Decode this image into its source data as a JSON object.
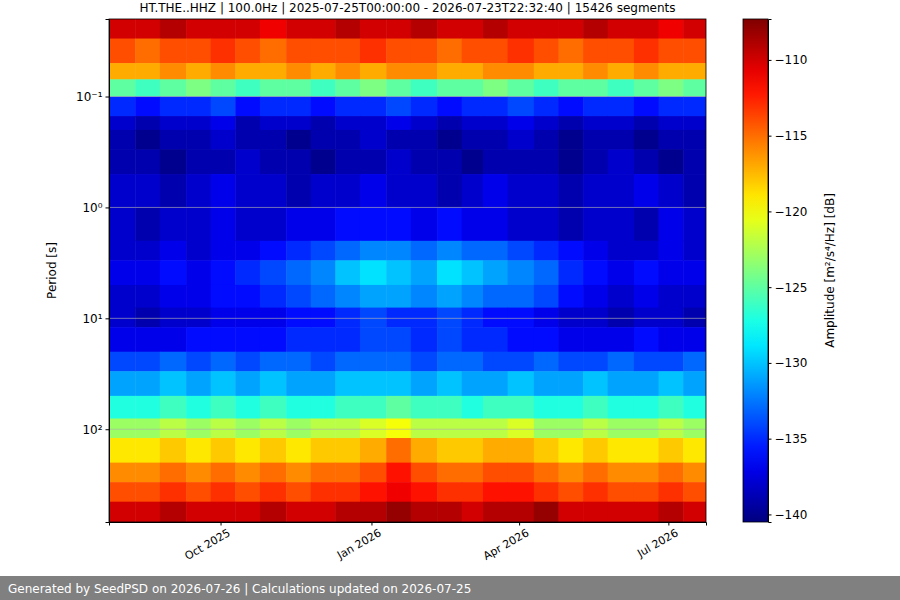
{
  "chart_data": {
    "type": "heatmap",
    "title": "HT.THE..HHZ | 100.0Hz | 2025-07-25T00:00:00 - 2026-07-23T22:32:40 | 15426 segments",
    "y_label": "Period [s]",
    "colorbar_label": "Amplitude [m²/s⁴/Hz] [dB]",
    "footer": "Generated by SeedPSD on 2026-07-26 | Calculations updated on 2026-07-25",
    "log": "y",
    "grid": true,
    "xlim": [
      "2025-07-25T00:00:00",
      "2026-07-23T22:32:40"
    ],
    "xticks": [
      {
        "value": "2025-10-01T00:00:00",
        "label": "Oct 2025"
      },
      {
        "value": "2026-01-01T00:00:00",
        "label": "Jan 2026"
      },
      {
        "value": "2026-04-01T00:00:00",
        "label": "Apr 2026"
      },
      {
        "value": "2026-07-01T00:00:00",
        "label": "Jul 2026"
      }
    ],
    "ylim": [
      0.02,
      686
    ],
    "yticks": [
      {
        "value": 0.1,
        "label": "10⁻¹"
      },
      {
        "value": 1,
        "label": "10⁰"
      },
      {
        "value": 10,
        "label": "10¹"
      },
      {
        "value": 100,
        "label": "10²"
      }
    ],
    "clim": [
      -140.5,
      -107.3
    ],
    "cticks": [
      {
        "value": -140,
        "label": "−140"
      },
      {
        "value": -135,
        "label": "−135"
      },
      {
        "value": -130,
        "label": "−130"
      },
      {
        "value": -125,
        "label": "−125"
      },
      {
        "value": -120,
        "label": "−120"
      },
      {
        "value": -115,
        "label": "−115"
      },
      {
        "value": -110,
        "label": "−110"
      }
    ],
    "x_edges": [
      "2025-07-25T00:00:00",
      "2025-08-10T00:00:00",
      "2025-08-25T00:00:00",
      "2025-09-10T00:00:00",
      "2025-09-25T00:00:00",
      "2025-10-10T00:00:00",
      "2025-10-25T00:00:00",
      "2025-11-10T00:00:00",
      "2025-11-25T00:00:00",
      "2025-12-10T00:00:00",
      "2025-12-25T00:00:00",
      "2026-01-10T00:00:00",
      "2026-01-25T00:00:00",
      "2026-02-10T00:00:00",
      "2026-02-25T00:00:00",
      "2026-03-10T00:00:00",
      "2026-03-25T00:00:00",
      "2026-04-10T00:00:00",
      "2026-04-25T00:00:00",
      "2026-05-10T00:00:00",
      "2026-05-25T00:00:00",
      "2026-06-10T00:00:00",
      "2026-06-25T00:00:00",
      "2026-07-10T00:00:00",
      "2026-07-23T22:32:40"
    ],
    "y_edges": [
      0.02,
      0.03,
      0.05,
      0.07,
      0.1,
      0.15,
      0.2,
      0.3,
      0.5,
      1,
      2,
      3,
      5,
      8,
      12,
      20,
      30,
      50,
      80,
      120,
      200,
      300,
      450,
      686
    ],
    "cells": [
      [
        -110,
        -110,
        -109,
        -110,
        -110,
        -110,
        -111,
        -110,
        -110,
        -109,
        -110,
        -110,
        -109,
        -110,
        -110,
        -109,
        -110,
        -110,
        -110,
        -109,
        -110,
        -110,
        -111,
        -110
      ],
      [
        -114,
        -115,
        -114,
        -114,
        -113,
        -114,
        -115,
        -114,
        -114,
        -114,
        -113,
        -114,
        -114,
        -115,
        -114,
        -114,
        -113,
        -114,
        -115,
        -114,
        -114,
        -113,
        -114,
        -114
      ],
      [
        -117,
        -117,
        -116,
        -117,
        -116,
        -117,
        -117,
        -116,
        -117,
        -116,
        -117,
        -116,
        -116,
        -117,
        -117,
        -116,
        -116,
        -117,
        -117,
        -116,
        -117,
        -116,
        -117,
        -117
      ],
      [
        -125,
        -126,
        -125,
        -124,
        -125,
        -126,
        -125,
        -125,
        -126,
        -125,
        -124,
        -125,
        -126,
        -125,
        -125,
        -124,
        -125,
        -126,
        -125,
        -125,
        -126,
        -125,
        -124,
        -125
      ],
      [
        -135,
        -136,
        -135,
        -135,
        -134,
        -136,
        -135,
        -135,
        -136,
        -135,
        -135,
        -134,
        -135,
        -136,
        -135,
        -135,
        -134,
        -135,
        -136,
        -135,
        -135,
        -136,
        -135,
        -135
      ],
      [
        -138,
        -139,
        -138,
        -138,
        -137,
        -139,
        -138,
        -138,
        -139,
        -138,
        -138,
        -137,
        -138,
        -139,
        -138,
        -138,
        -137,
        -138,
        -139,
        -138,
        -138,
        -139,
        -138,
        -138
      ],
      [
        -139,
        -140,
        -139,
        -139,
        -138,
        -139,
        -139,
        -140,
        -139,
        -139,
        -138,
        -139,
        -139,
        -140,
        -139,
        -139,
        -138,
        -139,
        -140,
        -139,
        -139,
        -140,
        -139,
        -139
      ],
      [
        -139,
        -139,
        -140,
        -139,
        -139,
        -138,
        -139,
        -139,
        -140,
        -139,
        -139,
        -138,
        -139,
        -139,
        -140,
        -139,
        -139,
        -139,
        -140,
        -139,
        -138,
        -139,
        -140,
        -139
      ],
      [
        -138,
        -138,
        -139,
        -138,
        -137,
        -138,
        -138,
        -139,
        -138,
        -138,
        -137,
        -138,
        -138,
        -139,
        -138,
        -137,
        -138,
        -138,
        -139,
        -138,
        -138,
        -137,
        -138,
        -139
      ],
      [
        -138,
        -139,
        -138,
        -138,
        -137,
        -138,
        -138,
        -137,
        -137,
        -136,
        -136,
        -136,
        -137,
        -136,
        -137,
        -137,
        -138,
        -138,
        -139,
        -138,
        -138,
        -139,
        -137,
        -138
      ],
      [
        -138,
        -138,
        -137,
        -138,
        -137,
        -137,
        -136,
        -135,
        -134,
        -133,
        -132,
        -132,
        -133,
        -132,
        -133,
        -133,
        -134,
        -135,
        -136,
        -137,
        -138,
        -138,
        -137,
        -138
      ],
      [
        -137,
        -137,
        -136,
        -137,
        -136,
        -135,
        -134,
        -133,
        -132,
        -130,
        -129,
        -130,
        -131,
        -129,
        -130,
        -131,
        -132,
        -133,
        -135,
        -136,
        -137,
        -136,
        -137,
        -137
      ],
      [
        -138,
        -138,
        -137,
        -137,
        -136,
        -136,
        -135,
        -134,
        -133,
        -132,
        -131,
        -131,
        -132,
        -131,
        -132,
        -133,
        -133,
        -134,
        -136,
        -137,
        -138,
        -137,
        -138,
        -138
      ],
      [
        -138,
        -139,
        -138,
        -138,
        -137,
        -137,
        -137,
        -136,
        -136,
        -135,
        -134,
        -135,
        -135,
        -134,
        -135,
        -136,
        -136,
        -137,
        -138,
        -138,
        -139,
        -138,
        -138,
        -139
      ],
      [
        -137,
        -137,
        -137,
        -136,
        -136,
        -136,
        -136,
        -135,
        -135,
        -135,
        -134,
        -134,
        -135,
        -134,
        -135,
        -135,
        -136,
        -136,
        -137,
        -137,
        -137,
        -136,
        -137,
        -137
      ],
      [
        -134,
        -134,
        -133,
        -134,
        -133,
        -134,
        -133,
        -133,
        -134,
        -133,
        -133,
        -133,
        -134,
        -133,
        -133,
        -134,
        -134,
        -133,
        -134,
        -134,
        -133,
        -134,
        -134,
        -133
      ],
      [
        -131,
        -131,
        -130,
        -131,
        -130,
        -131,
        -130,
        -131,
        -131,
        -130,
        -130,
        -130,
        -131,
        -130,
        -131,
        -131,
        -130,
        -131,
        -131,
        -130,
        -131,
        -131,
        -130,
        -131
      ],
      [
        -127,
        -127,
        -126,
        -127,
        -126,
        -127,
        -126,
        -127,
        -127,
        -126,
        -126,
        -125,
        -126,
        -126,
        -127,
        -126,
        -126,
        -127,
        -127,
        -126,
        -127,
        -127,
        -126,
        -127
      ],
      [
        -123,
        -123,
        -122,
        -123,
        -122,
        -123,
        -122,
        -123,
        -122,
        -122,
        -121,
        -120,
        -122,
        -122,
        -122,
        -122,
        -121,
        -123,
        -123,
        -122,
        -123,
        -123,
        -122,
        -123
      ],
      [
        -119,
        -119,
        -118,
        -119,
        -118,
        -119,
        -118,
        -119,
        -118,
        -118,
        -117,
        -115,
        -117,
        -118,
        -118,
        -117,
        -117,
        -118,
        -119,
        -118,
        -119,
        -119,
        -118,
        -119
      ],
      [
        -116,
        -116,
        -115,
        -116,
        -115,
        -116,
        -115,
        -116,
        -115,
        -115,
        -114,
        -112,
        -114,
        -115,
        -115,
        -114,
        -114,
        -115,
        -116,
        -115,
        -116,
        -116,
        -115,
        -116
      ],
      [
        -114,
        -114,
        -113,
        -114,
        -113,
        -114,
        -113,
        -114,
        -113,
        -113,
        -112,
        -111,
        -112,
        -113,
        -113,
        -112,
        -112,
        -113,
        -114,
        -113,
        -114,
        -114,
        -113,
        -114
      ],
      [
        -110,
        -110,
        -109,
        -110,
        -110,
        -110,
        -109,
        -110,
        -110,
        -109,
        -109,
        -108,
        -109,
        -109,
        -110,
        -109,
        -109,
        -108,
        -110,
        -110,
        -110,
        -110,
        -109,
        -110
      ]
    ]
  }
}
